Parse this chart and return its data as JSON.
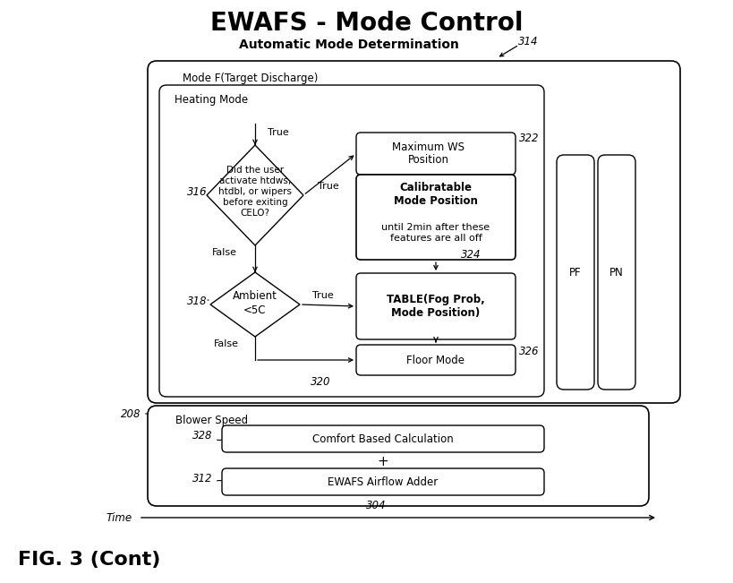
{
  "title": "EWAFS - Mode Control",
  "title_fontsize": 20,
  "subtitle": "Automatic Mode Determination",
  "subtitle_fontsize": 10,
  "fig_label": "FIG. 3 (Cont)",
  "background": "#ffffff",
  "label_314": "314",
  "label_316": "316",
  "label_318": "318",
  "label_320": "320",
  "label_322": "322",
  "label_324": "324",
  "label_326": "326",
  "label_208": "208",
  "label_328": "328",
  "label_312": "312",
  "label_304": "304",
  "label_PF": "PF",
  "label_PN": "PN",
  "label_time": "Time",
  "text_heating_mode": "Heating Mode",
  "text_mode_f": "Mode F(Target Discharge)",
  "text_diamond1_lines": [
    "Did the user",
    "activate htdws,",
    "htdbl, or wipers",
    "before exiting",
    "CELO?"
  ],
  "text_diamond2_lines": [
    "Ambient",
    "<5C"
  ],
  "text_box_maxws": "Maximum WS\nPosition",
  "text_box_calib_bold": "Calibratable\nMode Position",
  "text_box_calib_normal": "until 2min after these\nfeatures are all off",
  "text_box_table": "TABLE(Fog Prob,\nMode Position)",
  "text_box_floor": "Floor Mode",
  "text_box_blower": "Blower Speed",
  "text_box_comfort": "Comfort Based Calculation",
  "text_plus": "+",
  "text_box_ewafs": "EWAFS Airflow Adder",
  "true_label": "True",
  "false_label": "False"
}
